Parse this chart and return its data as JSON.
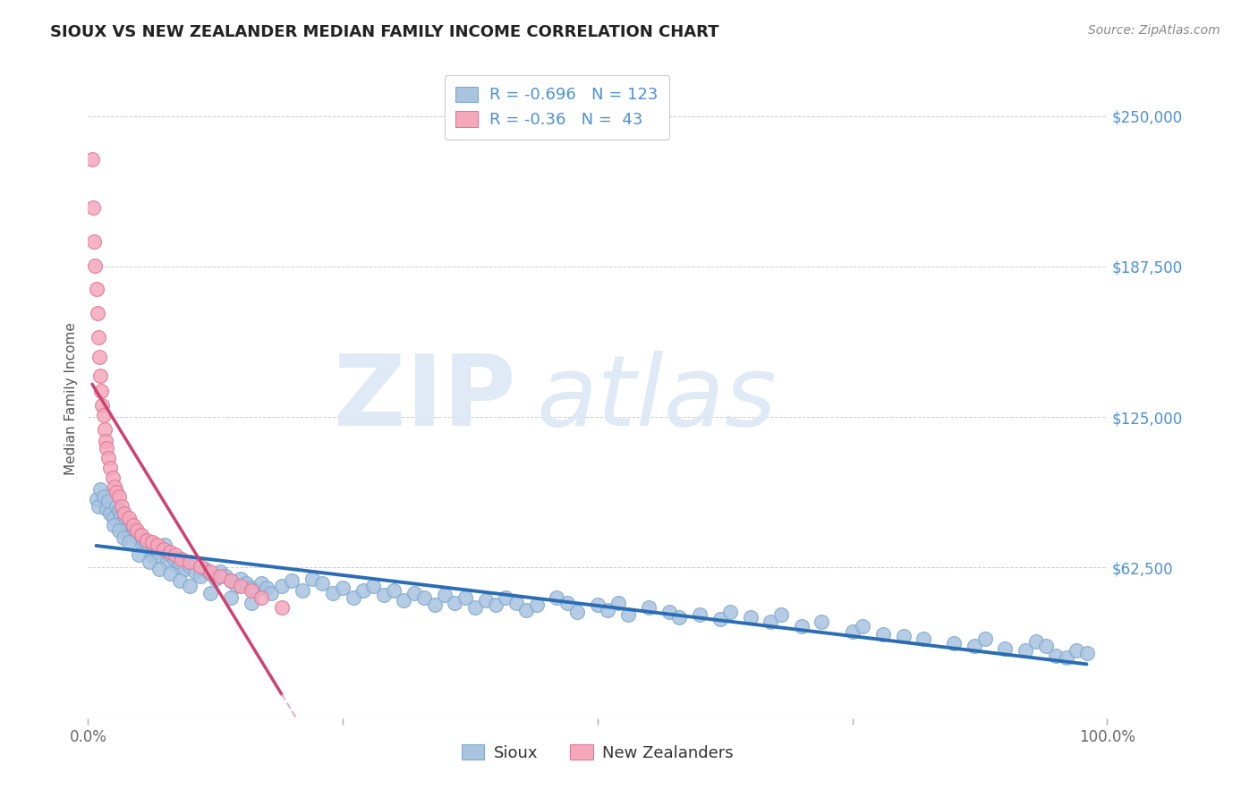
{
  "title": "SIOUX VS NEW ZEALANDER MEDIAN FAMILY INCOME CORRELATION CHART",
  "source": "Source: ZipAtlas.com",
  "ylabel": "Median Family Income",
  "xlim": [
    0,
    1.0
  ],
  "ylim": [
    0,
    265000
  ],
  "yticks": [
    62500,
    125000,
    187500,
    250000
  ],
  "background_color": "#ffffff",
  "grid_color": "#cccccc",
  "sioux_color": "#aac4e0",
  "sioux_edge_color": "#80aad0",
  "nz_color": "#f5a8bc",
  "nz_edge_color": "#e07898",
  "trend_sioux_color": "#2a6db5",
  "trend_nz_color": "#d04070",
  "trend_nz_dashed_color": "#e090a8",
  "sioux_R": -0.696,
  "sioux_N": 123,
  "nz_R": -0.36,
  "nz_N": 43,
  "legend_label_sioux": "Sioux",
  "legend_label_nz": "New Zealanders",
  "title_color": "#222222",
  "source_color": "#888888",
  "axis_label_color": "#555555",
  "ytick_color": "#4a90d9",
  "xtick_color": "#666666",
  "watermark_color": "#dce8f5",
  "sioux_x": [
    0.008,
    0.01,
    0.012,
    0.015,
    0.018,
    0.02,
    0.022,
    0.025,
    0.028,
    0.03,
    0.032,
    0.035,
    0.038,
    0.04,
    0.042,
    0.045,
    0.048,
    0.05,
    0.052,
    0.055,
    0.058,
    0.06,
    0.062,
    0.065,
    0.068,
    0.07,
    0.075,
    0.078,
    0.08,
    0.085,
    0.088,
    0.09,
    0.095,
    0.1,
    0.105,
    0.11,
    0.115,
    0.12,
    0.125,
    0.13,
    0.135,
    0.14,
    0.145,
    0.15,
    0.155,
    0.16,
    0.165,
    0.17,
    0.175,
    0.18,
    0.19,
    0.2,
    0.21,
    0.22,
    0.23,
    0.24,
    0.25,
    0.26,
    0.27,
    0.28,
    0.29,
    0.3,
    0.31,
    0.32,
    0.33,
    0.34,
    0.35,
    0.36,
    0.37,
    0.38,
    0.39,
    0.4,
    0.41,
    0.42,
    0.43,
    0.44,
    0.46,
    0.47,
    0.48,
    0.5,
    0.51,
    0.52,
    0.53,
    0.55,
    0.57,
    0.58,
    0.6,
    0.62,
    0.63,
    0.65,
    0.67,
    0.68,
    0.7,
    0.72,
    0.75,
    0.76,
    0.78,
    0.8,
    0.82,
    0.85,
    0.87,
    0.88,
    0.9,
    0.92,
    0.93,
    0.94,
    0.95,
    0.96,
    0.97,
    0.98,
    0.025,
    0.03,
    0.035,
    0.04,
    0.05,
    0.06,
    0.07,
    0.08,
    0.09,
    0.1,
    0.12,
    0.14,
    0.16
  ],
  "sioux_y": [
    91000,
    88000,
    95000,
    92000,
    87000,
    90000,
    85000,
    83000,
    88000,
    86000,
    84000,
    82000,
    79000,
    77000,
    81000,
    78000,
    75000,
    76000,
    73000,
    74000,
    72000,
    70000,
    68000,
    71000,
    69000,
    67000,
    72000,
    65000,
    68000,
    66000,
    63000,
    65000,
    62000,
    63000,
    61000,
    59000,
    62000,
    60000,
    58000,
    61000,
    59000,
    57000,
    55000,
    58000,
    56000,
    54000,
    53000,
    56000,
    54000,
    52000,
    55000,
    57000,
    53000,
    58000,
    56000,
    52000,
    54000,
    50000,
    53000,
    55000,
    51000,
    53000,
    49000,
    52000,
    50000,
    47000,
    51000,
    48000,
    50000,
    46000,
    49000,
    47000,
    50000,
    48000,
    45000,
    47000,
    50000,
    48000,
    44000,
    47000,
    45000,
    48000,
    43000,
    46000,
    44000,
    42000,
    43000,
    41000,
    44000,
    42000,
    40000,
    43000,
    38000,
    40000,
    36000,
    38000,
    35000,
    34000,
    33000,
    31000,
    30000,
    33000,
    29000,
    28000,
    32000,
    30000,
    26000,
    25000,
    28000,
    27000,
    80000,
    78000,
    75000,
    73000,
    68000,
    65000,
    62000,
    60000,
    57000,
    55000,
    52000,
    50000,
    48000
  ],
  "nz_x": [
    0.004,
    0.005,
    0.006,
    0.007,
    0.008,
    0.009,
    0.01,
    0.011,
    0.012,
    0.013,
    0.014,
    0.015,
    0.016,
    0.017,
    0.018,
    0.02,
    0.022,
    0.024,
    0.026,
    0.028,
    0.03,
    0.033,
    0.036,
    0.04,
    0.044,
    0.048,
    0.052,
    0.058,
    0.063,
    0.068,
    0.074,
    0.08,
    0.086,
    0.092,
    0.1,
    0.11,
    0.12,
    0.13,
    0.14,
    0.15,
    0.16,
    0.17,
    0.19
  ],
  "nz_y": [
    232000,
    212000,
    198000,
    188000,
    178000,
    168000,
    158000,
    150000,
    142000,
    136000,
    130000,
    126000,
    120000,
    115000,
    112000,
    108000,
    104000,
    100000,
    96000,
    94000,
    92000,
    88000,
    85000,
    83000,
    80000,
    78000,
    76000,
    74000,
    73000,
    72000,
    70000,
    69000,
    68000,
    66000,
    65000,
    63000,
    61000,
    59000,
    57000,
    55000,
    53000,
    50000,
    46000
  ]
}
